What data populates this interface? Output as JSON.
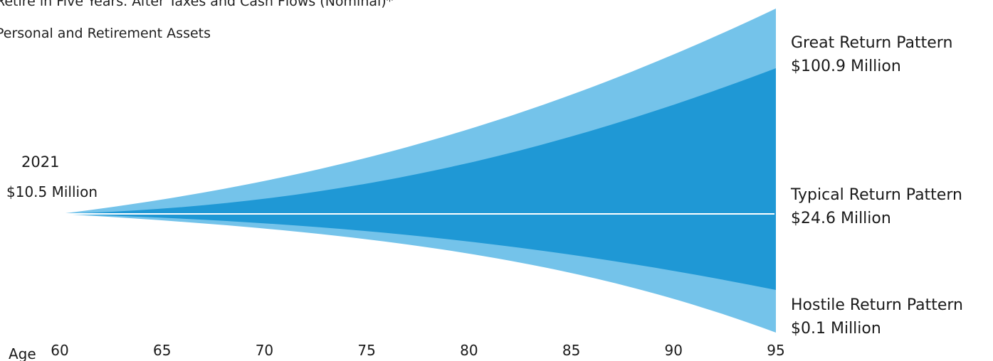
{
  "title": "Retire in Five Years. After Taxes and Cash Flows (Nominal)*",
  "subtitle": "Personal and Retirement Assets",
  "start": {
    "year": "2021",
    "value_label": "$10.5 Million"
  },
  "end_labels": {
    "great": {
      "name": "Great Return Pattern",
      "value": "$100.9 Million"
    },
    "typical": {
      "name": "Typical Return Pattern",
      "value": "$24.6 Million"
    },
    "hostile": {
      "name": "Hostile Return Pattern",
      "value": "$0.1 Million"
    }
  },
  "colors": {
    "outer_band": "#74c3ea",
    "inner_band": "#1f98d5",
    "median_line": "#ffffff"
  },
  "chart_data": {
    "type": "area",
    "x_axis_label": "Age",
    "x": [
      60,
      65,
      70,
      75,
      80,
      85,
      90,
      95
    ],
    "start_value": 10.5,
    "series": [
      {
        "name": "Great Return Pattern",
        "end_value": 100.9
      },
      {
        "name": "Typical Return Pattern",
        "end_value": 24.6
      },
      {
        "name": "Hostile Return Pattern",
        "end_value": 0.1
      }
    ],
    "value_unit": "$ Million"
  }
}
